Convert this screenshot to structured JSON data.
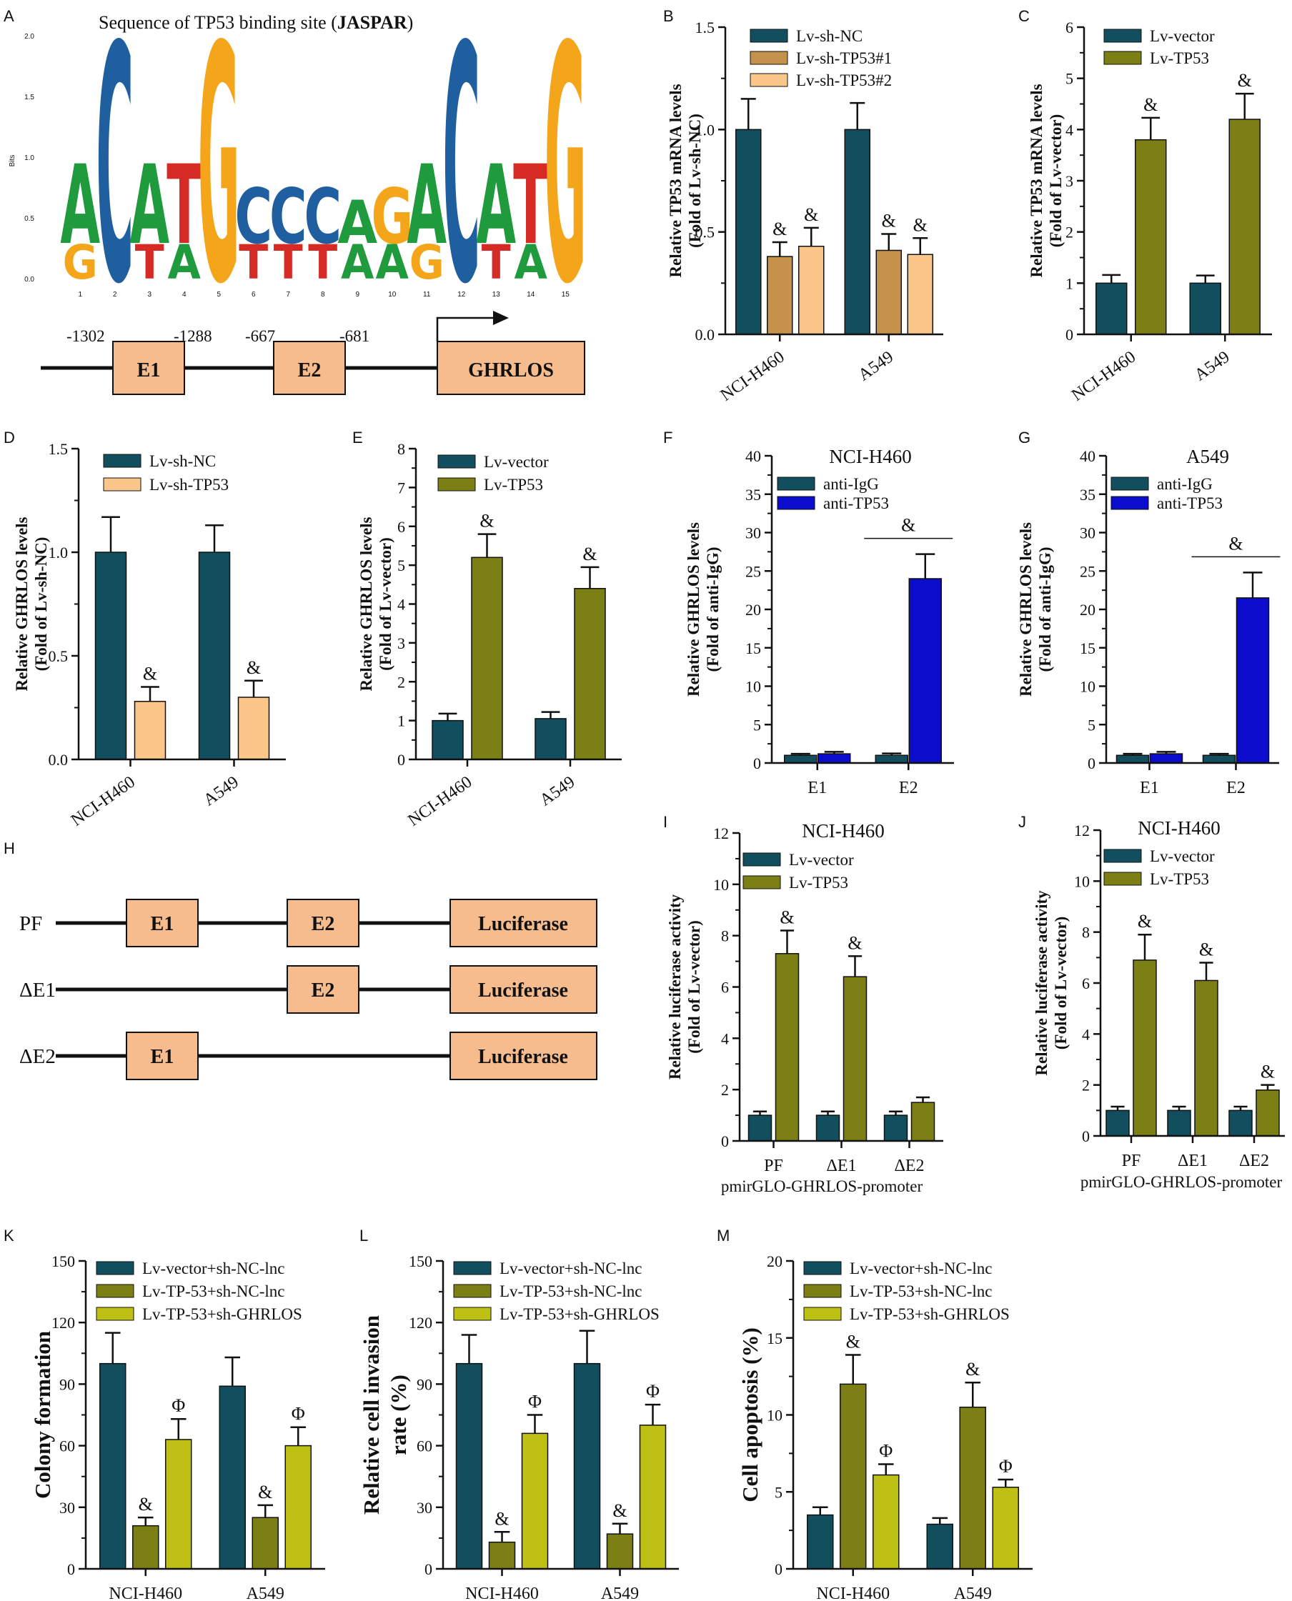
{
  "colors": {
    "teal": "#114e5e",
    "tan": "#c4924a",
    "peach": "#fbc68a",
    "olive": "#7c7f13",
    "lime": "#bec114",
    "blue": "#0c0ccd",
    "box_fill": "#f6bc8d",
    "logo_green": "#1f9a3d",
    "logo_blue": "#1f5f9f",
    "logo_orange": "#f4a51a",
    "logo_red": "#d62a24"
  },
  "panel_A": {
    "letter": "A",
    "title_prefix": "Sequence of TP53 binding site (",
    "title_bold": "JASPAR",
    "title_suffix": ")",
    "y_axis_label": "Bits",
    "y_ticks": [
      "0.0",
      "0.5",
      "1.0",
      "1.5",
      "2.0"
    ],
    "positions": [
      "1",
      "2",
      "3",
      "4",
      "5",
      "6",
      "7",
      "8",
      "9",
      "10",
      "11",
      "12",
      "13",
      "14",
      "15"
    ],
    "motif_top": [
      "A",
      "C",
      "A",
      "T",
      "G",
      "C",
      "C",
      "C",
      "A",
      "G",
      "A",
      "C",
      "A",
      "T",
      "G"
    ],
    "motif_second": [
      "G",
      "",
      "T",
      "A",
      "",
      "T",
      "T",
      "T",
      "A",
      "A",
      "G",
      "",
      "T",
      "A",
      ""
    ],
    "motif_bits": [
      0.95,
      1.95,
      0.95,
      0.95,
      1.95,
      0.75,
      0.75,
      0.75,
      0.65,
      0.75,
      0.95,
      1.95,
      0.95,
      0.95,
      1.95
    ],
    "promoter": {
      "e1_pos": [
        "-1302",
        "-1288"
      ],
      "e2_pos": [
        "-667",
        "-681"
      ],
      "e1_label": "E1",
      "e2_label": "E2",
      "gene_label": "GHRLOS"
    }
  },
  "panel_H": {
    "letter": "H",
    "rows": [
      {
        "label": "PF",
        "e1": "E1",
        "e2": "E2",
        "luc": "Luciferase"
      },
      {
        "label": "ΔE1",
        "e1": "",
        "e2": "E2",
        "luc": "Luciferase"
      },
      {
        "label": "ΔE2",
        "e1": "E1",
        "e2": "",
        "luc": "Luciferase"
      }
    ]
  },
  "chart_data": [
    {
      "panel": "B",
      "type": "bar",
      "title": "",
      "ylabel": [
        "Relative TP53 mRNA levels",
        "(Fold of Lv-sh-NC)"
      ],
      "ylim": [
        0,
        1.5
      ],
      "yticks": [
        "0.0",
        "0.5",
        "1.0",
        "1.5"
      ],
      "categories": [
        "NCI-H460",
        "A549"
      ],
      "series": [
        {
          "name": "Lv-sh-NC",
          "color_key": "teal",
          "values": [
            1.0,
            1.0
          ],
          "errors": [
            0.15,
            0.13
          ],
          "marks": [
            "",
            ""
          ]
        },
        {
          "name": "Lv-sh-TP53#1",
          "color_key": "tan",
          "values": [
            0.38,
            0.41
          ],
          "errors": [
            0.07,
            0.08
          ],
          "marks": [
            "&",
            "&"
          ]
        },
        {
          "name": "Lv-sh-TP53#2",
          "color_key": "peach",
          "values": [
            0.43,
            0.39
          ],
          "errors": [
            0.09,
            0.08
          ],
          "marks": [
            "&",
            "&"
          ]
        }
      ]
    },
    {
      "panel": "C",
      "type": "bar",
      "title": "",
      "ylabel": [
        "Relative TP53 mRNA levels",
        "(Fold of Lv-vector)"
      ],
      "ylim": [
        0,
        6
      ],
      "yticks": [
        "0",
        "1",
        "2",
        "3",
        "4",
        "5",
        "6"
      ],
      "categories": [
        "NCI-H460",
        "A549"
      ],
      "series": [
        {
          "name": "Lv-vector",
          "color_key": "teal",
          "values": [
            1.0,
            1.0
          ],
          "errors": [
            0.16,
            0.15
          ],
          "marks": [
            "",
            ""
          ]
        },
        {
          "name": "Lv-TP53",
          "color_key": "olive",
          "values": [
            3.8,
            4.2
          ],
          "errors": [
            0.43,
            0.5
          ],
          "marks": [
            "&",
            "&"
          ]
        }
      ]
    },
    {
      "panel": "D",
      "type": "bar",
      "title": "",
      "ylabel": [
        "Relative GHRLOS levels",
        "(Fold of Lv-sh-NC)"
      ],
      "ylim": [
        0,
        1.5
      ],
      "yticks": [
        "0.0",
        "0.5",
        "1.0",
        "1.5"
      ],
      "categories": [
        "NCI-H460",
        "A549"
      ],
      "series": [
        {
          "name": "Lv-sh-NC",
          "color_key": "teal",
          "values": [
            1.0,
            1.0
          ],
          "errors": [
            0.17,
            0.13
          ],
          "marks": [
            "",
            ""
          ]
        },
        {
          "name": "Lv-sh-TP53",
          "color_key": "peach",
          "values": [
            0.28,
            0.3
          ],
          "errors": [
            0.07,
            0.08
          ],
          "marks": [
            "&",
            "&"
          ]
        }
      ]
    },
    {
      "panel": "E",
      "type": "bar",
      "title": "",
      "ylabel": [
        "Relative GHRLOS levels",
        "(Fold of Lv-vector)"
      ],
      "ylim": [
        0,
        8
      ],
      "yticks": [
        "0",
        "1",
        "2",
        "3",
        "4",
        "5",
        "6",
        "7",
        "8"
      ],
      "categories": [
        "NCI-H460",
        "A549"
      ],
      "series": [
        {
          "name": "Lv-vector",
          "color_key": "teal",
          "values": [
            1.0,
            1.05
          ],
          "errors": [
            0.18,
            0.17
          ],
          "marks": [
            "",
            ""
          ]
        },
        {
          "name": "Lv-TP53",
          "color_key": "olive",
          "values": [
            5.2,
            4.4
          ],
          "errors": [
            0.6,
            0.55
          ],
          "marks": [
            "&",
            "&"
          ]
        }
      ]
    },
    {
      "panel": "F",
      "type": "bar",
      "title": "NCI-H460",
      "ylabel": [
        "Relative GHRLOS levels",
        "(Fold of anti-IgG)"
      ],
      "ylim": [
        0,
        40
      ],
      "yticks": [
        "0",
        "5",
        "10",
        "15",
        "20",
        "25",
        "30",
        "35",
        "40"
      ],
      "categories": [
        "E1",
        "E2"
      ],
      "series": [
        {
          "name": "anti-IgG",
          "color_key": "teal",
          "values": [
            1.0,
            1.0
          ],
          "errors": [
            0.2,
            0.25
          ],
          "marks": [
            "",
            ""
          ]
        },
        {
          "name": "anti-TP53",
          "color_key": "blue",
          "values": [
            1.2,
            24.0
          ],
          "errors": [
            0.25,
            3.2
          ],
          "marks": [
            "",
            ""
          ]
        }
      ],
      "bracket": {
        "category": 1,
        "mark": "&"
      }
    },
    {
      "panel": "G",
      "type": "bar",
      "title": "A549",
      "ylabel": [
        "Relative GHRLOS levels",
        "(Fold of anti-IgG)"
      ],
      "ylim": [
        0,
        40
      ],
      "yticks": [
        "0",
        "5",
        "10",
        "15",
        "20",
        "25",
        "30",
        "35",
        "40"
      ],
      "categories": [
        "E1",
        "E2"
      ],
      "series": [
        {
          "name": "anti-IgG",
          "color_key": "teal",
          "values": [
            1.0,
            1.0
          ],
          "errors": [
            0.2,
            0.2
          ],
          "marks": [
            "",
            ""
          ]
        },
        {
          "name": "anti-TP53",
          "color_key": "blue",
          "values": [
            1.2,
            21.5
          ],
          "errors": [
            0.25,
            3.3
          ],
          "marks": [
            "",
            ""
          ]
        }
      ],
      "bracket": {
        "category": 1,
        "mark": "&"
      }
    },
    {
      "panel": "I",
      "type": "bar",
      "title": "NCI-H460",
      "ylabel": [
        "Relative luciferase activity",
        "(Fold of Lv-vector)"
      ],
      "ylim": [
        0,
        12
      ],
      "yticks": [
        "0",
        "2",
        "4",
        "6",
        "8",
        "10",
        "12"
      ],
      "categories": [
        "PF",
        "ΔE1",
        "ΔE2"
      ],
      "xlabel": "pmirGLO-GHRLOS-promoter",
      "series": [
        {
          "name": "Lv-vector",
          "color_key": "teal",
          "values": [
            1.0,
            1.0,
            1.0
          ],
          "errors": [
            0.15,
            0.15,
            0.15
          ],
          "marks": [
            "",
            "",
            ""
          ]
        },
        {
          "name": "Lv-TP53",
          "color_key": "olive",
          "values": [
            7.3,
            6.4,
            1.5
          ],
          "errors": [
            0.9,
            0.8,
            0.2
          ],
          "marks": [
            "&",
            "&",
            ""
          ]
        }
      ]
    },
    {
      "panel": "J",
      "type": "bar",
      "title": "NCI-H460",
      "ylabel": [
        "Relative luciferase activity",
        "(Fold of Lv-vector)"
      ],
      "ylim": [
        0,
        12
      ],
      "yticks": [
        "0",
        "2",
        "4",
        "6",
        "8",
        "10",
        "12"
      ],
      "categories": [
        "PF",
        "ΔE1",
        "ΔE2"
      ],
      "xlabel": "pmirGLO-GHRLOS-promoter",
      "series": [
        {
          "name": "Lv-vector",
          "color_key": "teal",
          "values": [
            1.0,
            1.0,
            1.0
          ],
          "errors": [
            0.15,
            0.15,
            0.15
          ],
          "marks": [
            "",
            "",
            ""
          ]
        },
        {
          "name": "Lv-TP53",
          "color_key": "olive",
          "values": [
            6.9,
            6.1,
            1.8
          ],
          "errors": [
            1.0,
            0.7,
            0.2
          ],
          "marks": [
            "&",
            "&",
            "&"
          ]
        }
      ]
    },
    {
      "panel": "K",
      "type": "bar",
      "title": "",
      "ylabel": [
        "Colony formation"
      ],
      "ylim": [
        0,
        150
      ],
      "yticks": [
        "0",
        "30",
        "60",
        "90",
        "120",
        "150"
      ],
      "categories": [
        "NCI-H460",
        "A549"
      ],
      "series": [
        {
          "name": "Lv-vector+sh-NC-lnc",
          "color_key": "teal",
          "values": [
            100,
            89
          ],
          "errors": [
            15,
            14
          ],
          "marks": [
            "",
            ""
          ]
        },
        {
          "name": "Lv-TP-53+sh-NC-lnc",
          "color_key": "olive",
          "values": [
            21,
            25
          ],
          "errors": [
            4,
            6
          ],
          "marks": [
            "&",
            "&"
          ]
        },
        {
          "name": "Lv-TP-53+sh-GHRLOS",
          "color_key": "lime",
          "values": [
            63,
            60
          ],
          "errors": [
            10,
            9
          ],
          "marks": [
            "Φ",
            "Φ"
          ]
        }
      ]
    },
    {
      "panel": "L",
      "type": "bar",
      "title": "",
      "ylabel": [
        "Relative cell invasion",
        "rate (%)"
      ],
      "ylim": [
        0,
        150
      ],
      "yticks": [
        "0",
        "30",
        "60",
        "90",
        "120",
        "150"
      ],
      "categories": [
        "NCI-H460",
        "A549"
      ],
      "series": [
        {
          "name": "Lv-vector+sh-NC-lnc",
          "color_key": "teal",
          "values": [
            100,
            100
          ],
          "errors": [
            14,
            16
          ],
          "marks": [
            "",
            ""
          ]
        },
        {
          "name": "Lv-TP-53+sh-NC-lnc",
          "color_key": "olive",
          "values": [
            13,
            17
          ],
          "errors": [
            5,
            5
          ],
          "marks": [
            "&",
            "&"
          ]
        },
        {
          "name": "Lv-TP-53+sh-GHRLOS",
          "color_key": "lime",
          "values": [
            66,
            70
          ],
          "errors": [
            9,
            10
          ],
          "marks": [
            "Φ",
            "Φ"
          ]
        }
      ]
    },
    {
      "panel": "M",
      "type": "bar",
      "title": "",
      "ylabel": [
        "Cell apoptosis (%)"
      ],
      "ylim": [
        0,
        20
      ],
      "yticks": [
        "0",
        "5",
        "10",
        "15",
        "20"
      ],
      "categories": [
        "NCI-H460",
        "A549"
      ],
      "series": [
        {
          "name": "Lv-vector+sh-NC-lnc",
          "color_key": "teal",
          "values": [
            3.5,
            2.9
          ],
          "errors": [
            0.5,
            0.4
          ],
          "marks": [
            "",
            ""
          ]
        },
        {
          "name": "Lv-TP-53+sh-NC-lnc",
          "color_key": "olive",
          "values": [
            12.0,
            10.5
          ],
          "errors": [
            1.9,
            1.6
          ],
          "marks": [
            "&",
            "&"
          ]
        },
        {
          "name": "Lv-TP-53+sh-GHRLOS",
          "color_key": "lime",
          "values": [
            6.1,
            5.3
          ],
          "errors": [
            0.7,
            0.5
          ],
          "marks": [
            "Φ",
            "Φ"
          ]
        }
      ]
    }
  ]
}
